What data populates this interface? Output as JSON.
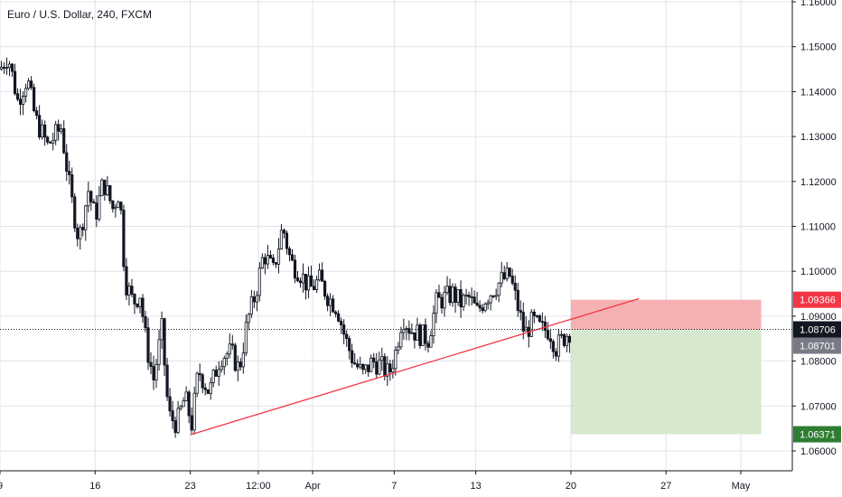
{
  "title": "Euro / U.S. Dollar, 240, FXCM",
  "chart_data": {
    "type": "candlestick",
    "symbol": "Euro / U.S. Dollar",
    "interval": "240",
    "source": "FXCM",
    "ylim": [
      1.0562,
      1.1626
    ],
    "y_ticks": [
      "1.16000",
      "1.15000",
      "1.14000",
      "1.13000",
      "1.12000",
      "1.11000",
      "1.10000",
      "1.09000",
      "1.08000",
      "1.07000",
      "1.06000"
    ],
    "y_tick_values": [
      1.16,
      1.15,
      1.14,
      1.13,
      1.12,
      1.11,
      1.1,
      1.09,
      1.08,
      1.07,
      1.06
    ],
    "x_ticks": [
      {
        "label": "9",
        "t": 0
      },
      {
        "label": "16",
        "t": 7
      },
      {
        "label": "23",
        "t": 14
      },
      {
        "label": "12:00",
        "t": 19
      },
      {
        "label": "Apr",
        "t": 23
      },
      {
        "label": "7",
        "t": 29
      },
      {
        "label": "13",
        "t": 35
      },
      {
        "label": "20",
        "t": 42
      },
      {
        "label": "27",
        "t": 49
      },
      {
        "label": "May",
        "t": 54.5
      }
    ],
    "xlim": [
      0,
      58
    ],
    "price_path": [
      [
        0,
        1.145
      ],
      [
        0.6,
        1.148
      ],
      [
        1.3,
        1.138
      ],
      [
        2,
        1.143
      ],
      [
        2.6,
        1.134
      ],
      [
        3.5,
        1.128
      ],
      [
        4.5,
        1.132
      ],
      [
        5.2,
        1.117
      ],
      [
        5.8,
        1.107
      ],
      [
        6.5,
        1.118
      ],
      [
        7,
        1.112
      ],
      [
        7.6,
        1.12
      ],
      [
        8.3,
        1.114
      ],
      [
        8.8,
        1.118
      ],
      [
        9.2,
        1.098
      ],
      [
        9.8,
        1.093
      ],
      [
        10.3,
        1.095
      ],
      [
        10.8,
        1.083
      ],
      [
        11.3,
        1.076
      ],
      [
        11.9,
        1.087
      ],
      [
        12.4,
        1.068
      ],
      [
        13,
        1.066
      ],
      [
        13.6,
        1.072
      ],
      [
        14.1,
        1.066
      ],
      [
        14.6,
        1.078
      ],
      [
        15.4,
        1.073
      ],
      [
        16.2,
        1.081
      ],
      [
        17,
        1.082
      ],
      [
        17.6,
        1.078
      ],
      [
        18.2,
        1.089
      ],
      [
        18.8,
        1.095
      ],
      [
        19.4,
        1.104
      ],
      [
        20.1,
        1.1
      ],
      [
        20.8,
        1.11
      ],
      [
        21.4,
        1.102
      ],
      [
        22,
        1.1
      ],
      [
        22.8,
        1.096
      ],
      [
        23.5,
        1.098
      ],
      [
        24.2,
        1.094
      ],
      [
        24.8,
        1.092
      ],
      [
        25.4,
        1.085
      ],
      [
        26,
        1.08
      ],
      [
        26.7,
        1.077
      ],
      [
        27.4,
        1.08
      ],
      [
        28,
        1.079
      ],
      [
        28.6,
        1.077
      ],
      [
        29.1,
        1.082
      ],
      [
        29.6,
        1.09
      ],
      [
        30.2,
        1.087
      ],
      [
        30.8,
        1.086
      ],
      [
        31.5,
        1.085
      ],
      [
        32.1,
        1.093
      ],
      [
        32.7,
        1.094
      ],
      [
        33.3,
        1.095
      ],
      [
        33.9,
        1.093
      ],
      [
        34.5,
        1.094
      ],
      [
        35.1,
        1.091
      ],
      [
        35.7,
        1.094
      ],
      [
        36.3,
        1.096
      ],
      [
        36.9,
        1.098
      ],
      [
        37.5,
        1.099
      ],
      [
        38.1,
        1.092
      ],
      [
        38.6,
        1.086
      ],
      [
        39.2,
        1.089
      ],
      [
        39.8,
        1.087
      ],
      [
        40.4,
        1.087
      ],
      [
        40.9,
        1.083
      ],
      [
        41.4,
        1.085
      ],
      [
        42,
        1.087
      ]
    ],
    "trendline": {
      "color": "#f23645",
      "points": [
        [
          14,
          1.0636
        ],
        [
          47,
          1.0939
        ]
      ]
    },
    "last_price_line": {
      "value": 1.08706,
      "style": "dotted"
    },
    "position": {
      "type": "short",
      "t_start": 42,
      "t_end": 56,
      "entry": 1.08701,
      "stop": 1.09366,
      "target": 1.06371,
      "stop_fill": "#f5a3a7",
      "target_fill": "#cfe5c5"
    },
    "price_labels": [
      {
        "value": "1.09366",
        "price": 1.09366,
        "color": "#f23645"
      },
      {
        "value": "1.08706",
        "price": 1.08706,
        "color": "#131722"
      },
      {
        "value": "1.08701",
        "price": 1.08701,
        "color": "#787b86"
      },
      {
        "value": "1.06371",
        "price": 1.06371,
        "color": "#2e7d32"
      }
    ],
    "colors": {
      "candle": "#131722",
      "grid": "#e0e3eb",
      "axis": "#131722"
    }
  }
}
